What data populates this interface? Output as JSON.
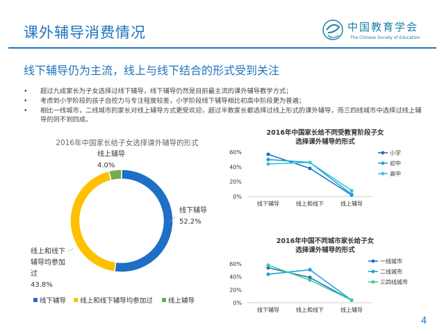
{
  "header": {
    "title": "课外辅导消费情况",
    "logo_cn": "中国教育学会",
    "logo_en": "The Chinese Society of Education"
  },
  "subtitle": "线下辅导仍为主流，线上与线下结合的形式受到关注",
  "bullets": [
    "超过九成家长为子女选择过线下辅导，线下辅导仍然是目前最主流的课外辅导教学方式；",
    "考虑到小学阶段的孩子自控力与专注程度较差，小学阶段线下辅导相比初高中阶段更为普遍；",
    "相比一线城市，二线城市的家长对线上辅导方式更受欢迎，超过半数家长都选择过线上形式的课外辅导，而三四线城市中选择过线上辅导的则不到四成。"
  ],
  "page_number": "4",
  "chart_data": [
    {
      "type": "pie",
      "variant": "donut",
      "title": "2016年中国家长给子女选择课外辅导的形式",
      "categories": [
        "线下辅导",
        "线上和线下辅导均参加过",
        "线上辅导"
      ],
      "values": [
        52.2,
        43.8,
        4.0
      ],
      "data_labels": [
        [
          "线下辅导",
          "52.2%"
        ],
        [
          "线上和线下",
          "辅导均参加",
          "过",
          "43.8%"
        ],
        [
          "线上辅导",
          "4.0%"
        ]
      ],
      "colors": [
        "#1f6fc5",
        "#ffc000",
        "#70ad47"
      ],
      "legend": "bottom"
    },
    {
      "type": "line",
      "title": [
        "2016年中国家长给不同受教育阶段子女",
        "选择课外辅导的形式"
      ],
      "categories": [
        "线下辅导",
        "线上和线下",
        "线上辅导"
      ],
      "series": [
        {
          "name": "小学",
          "values": [
            57,
            38,
            2
          ],
          "color": "#1f6fc5"
        },
        {
          "name": "初中",
          "values": [
            50,
            46,
            3
          ],
          "color": "#1e9fd8"
        },
        {
          "name": "高中",
          "values": [
            44,
            46,
            8
          ],
          "color": "#33c9d6"
        }
      ],
      "yticks": [
        "0%",
        "20%",
        "40%",
        "60%"
      ],
      "ylim": [
        0,
        60
      ],
      "legend": "right"
    },
    {
      "type": "line",
      "title": [
        "2016年中国不同城市家长给子女",
        "选择课外辅导的形式"
      ],
      "categories": [
        "线下辅导",
        "线上和线下",
        "线上辅导"
      ],
      "series": [
        {
          "name": "一线城市",
          "values": [
            54,
            39,
            4
          ],
          "color": "#1f6fc5"
        },
        {
          "name": "二线城市",
          "values": [
            44,
            51,
            4
          ],
          "color": "#1e9fd8"
        },
        {
          "name": "三四线城市",
          "values": [
            58,
            35,
            4
          ],
          "color": "#3fcf8e"
        }
      ],
      "yticks": [
        "0%",
        "20%",
        "40%",
        "60%"
      ],
      "ylim": [
        0,
        60
      ],
      "legend": "right"
    }
  ]
}
